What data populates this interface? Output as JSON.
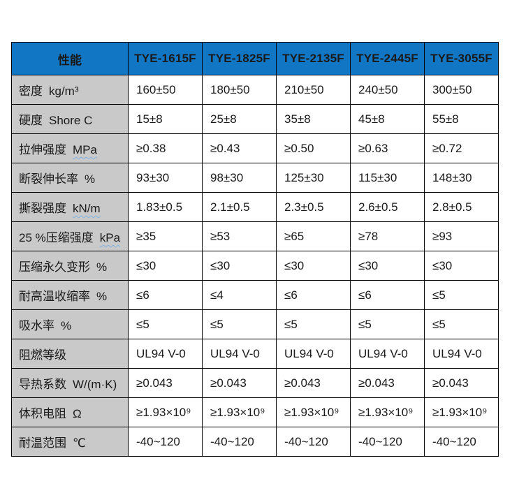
{
  "table": {
    "property_header": "性能",
    "columns": [
      "TYE-1615F",
      "TYE-1825F",
      "TYE-2135F",
      "TYE-2445F",
      "TYE-3055F"
    ],
    "rows": [
      {
        "label": "密度",
        "unit": "kg/m³",
        "squiggle": false,
        "values": [
          "160±50",
          "180±50",
          "210±50",
          "240±50",
          "300±50"
        ]
      },
      {
        "label": "硬度",
        "unit": "Shore C",
        "squiggle": false,
        "values": [
          "15±8",
          "25±8",
          "35±8",
          "45±8",
          "55±8"
        ]
      },
      {
        "label": "拉伸强度",
        "unit": "MPa",
        "squiggle": true,
        "values": [
          "≥0.38",
          "≥0.43",
          "≥0.50",
          "≥0.63",
          "≥0.72"
        ]
      },
      {
        "label": "断裂伸长率",
        "unit": "%",
        "squiggle": false,
        "values": [
          "93±30",
          "98±30",
          "125±30",
          "115±30",
          "148±30"
        ]
      },
      {
        "label": "撕裂强度",
        "unit": "kN/m",
        "squiggle": true,
        "values": [
          "1.83±0.5",
          "2.1±0.5",
          "2.3±0.5",
          "2.6±0.5",
          "2.8±0.5"
        ]
      },
      {
        "label": "25 %压缩强度",
        "unit": "kPa",
        "squiggle": true,
        "values": [
          "≥35",
          "≥53",
          "≥65",
          "≥78",
          "≥93"
        ]
      },
      {
        "label": "压缩永久变形",
        "unit": "%",
        "squiggle": false,
        "values": [
          "≤30",
          "≤30",
          "≤30",
          "≤30",
          "≤30"
        ]
      },
      {
        "label": "耐高温收缩率",
        "unit": "%",
        "squiggle": false,
        "values": [
          "≤6",
          "≤4",
          "≤6",
          "≤6",
          "≤5"
        ]
      },
      {
        "label": "吸水率",
        "unit": "%",
        "squiggle": false,
        "values": [
          "≤5",
          "≤5",
          "≤5",
          "≤5",
          "≤5"
        ]
      },
      {
        "label": "阻燃等级",
        "unit": "",
        "squiggle": false,
        "values": [
          "UL94 V-0",
          "UL94 V-0",
          "UL94 V-0",
          "UL94 V-0",
          "UL94 V-0"
        ]
      },
      {
        "label": "导热系数",
        "unit": "W/(m·K)",
        "squiggle": false,
        "values": [
          "≥0.043",
          "≥0.043",
          "≥0.043",
          "≥0.043",
          "≥0.043"
        ]
      },
      {
        "label": "体积电阻",
        "unit": "Ω",
        "squiggle": false,
        "values": [
          "≥1.93×10⁹",
          "≥1.93×10⁹",
          "≥1.93×10⁹",
          "≥1.93×10⁹",
          "≥1.93×10⁹"
        ]
      },
      {
        "label": "耐温范围",
        "unit": "℃",
        "squiggle": false,
        "values": [
          "-40~120",
          "-40~120",
          "-40~120",
          "-40~120",
          "-40~120"
        ]
      }
    ]
  },
  "colors": {
    "header_bg": "#1176c4",
    "label_col_bg": "#c9c9c9",
    "border": "#000000",
    "squiggle": "#7fb2e4"
  }
}
